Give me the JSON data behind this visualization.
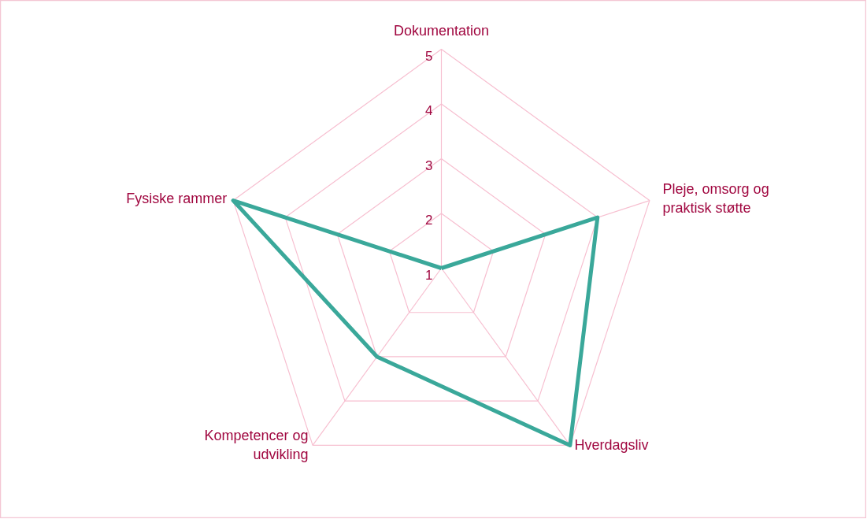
{
  "chart_data": {
    "type": "radar",
    "categories": [
      "Dokumentation",
      "Pleje, omsorg og\npraktisk støtte",
      "Hverdagsliv",
      "Kompetencer og\nudvikling",
      "Fysiske rammer"
    ],
    "series": [
      {
        "color": "#3aa89a",
        "values": [
          1,
          4,
          5,
          3,
          5
        ]
      }
    ],
    "ylim": [
      1,
      5
    ],
    "yticks": [
      1,
      2,
      3,
      4,
      5
    ],
    "grid": true,
    "marker": "none",
    "line_style": "solid"
  }
}
